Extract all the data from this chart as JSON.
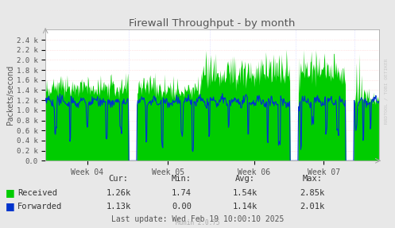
{
  "title": "Firewall Throughput - by month",
  "ylabel": "Packets/second",
  "ylim": [
    0,
    2600
  ],
  "ytick_vals": [
    0,
    200,
    400,
    600,
    800,
    1000,
    1200,
    1400,
    1600,
    1800,
    2000,
    2200,
    2400
  ],
  "ytick_labels": [
    "0.0",
    "0.2 k",
    "0.4 k",
    "0.6 k",
    "0.8 k",
    "1.0 k",
    "1.2 k",
    "1.4 k",
    "1.6 k",
    "1.8 k",
    "2.0 k",
    "2.2 k",
    "2.4 k"
  ],
  "xtick_labels": [
    "Week 04",
    "Week 05",
    "Week 06",
    "Week 07"
  ],
  "fig_bg_color": "#E8E8E8",
  "plot_bg_color": "#FFFFFF",
  "grid_color_h": "#FFCCCC",
  "grid_color_v": "#CCCCFF",
  "received_color": "#00CC00",
  "forwarded_color": "#0033CC",
  "title_color": "#555555",
  "axis_label_color": "#555555",
  "tick_color": "#555555",
  "legend": [
    "Received",
    "Forwarded"
  ],
  "stats_headers": [
    "Cur:",
    "Min:",
    "Avg:",
    "Max:"
  ],
  "stats_received": [
    "1.26k",
    "1.74",
    "1.54k",
    "2.85k"
  ],
  "stats_forwarded": [
    "1.13k",
    "0.00",
    "1.14k",
    "2.01k"
  ],
  "last_update": "Last update: Wed Feb 19 10:00:10 2025",
  "munin_version": "Munin 2.0.75",
  "watermark": "RRDTOOL / TOBI OETIKER",
  "num_points": 600,
  "seed": 42
}
